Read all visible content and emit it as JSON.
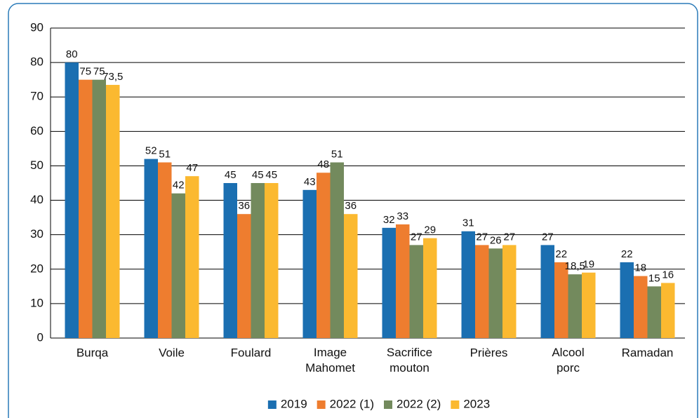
{
  "chart_data": {
    "type": "bar",
    "categories": [
      "Burqa",
      "Voile",
      "Foulard",
      "Image\nMahomet",
      "Sacrifice\nmouton",
      "Prières",
      "Alcool\nporc",
      "Ramadan"
    ],
    "series": [
      {
        "name": "2019",
        "color": "#1b6fb1",
        "values": [
          80,
          52,
          45,
          43,
          32,
          31,
          27,
          22
        ]
      },
      {
        "name": "2022 (1)",
        "color": "#ee7d2f",
        "values": [
          75,
          51,
          36,
          48,
          33,
          27,
          22,
          18
        ]
      },
      {
        "name": "2022 (2)",
        "color": "#738a5d",
        "values": [
          75,
          42,
          45,
          51,
          27,
          26,
          18.5,
          15
        ],
        "value_labels": [
          "75",
          "42",
          "45",
          "51",
          "27",
          "26",
          "18,5",
          "15"
        ]
      },
      {
        "name": "2023",
        "color": "#fbb930",
        "values": [
          73.5,
          47,
          45,
          36,
          29,
          27,
          19,
          16
        ],
        "value_labels": [
          "73,5",
          "47",
          "45",
          "36",
          "29",
          "27",
          "19",
          "16"
        ]
      }
    ],
    "ylim": [
      0,
      90
    ],
    "yticks": [
      0,
      10,
      20,
      30,
      40,
      50,
      60,
      70,
      80,
      90
    ],
    "grid": true,
    "legend": "bottom"
  }
}
